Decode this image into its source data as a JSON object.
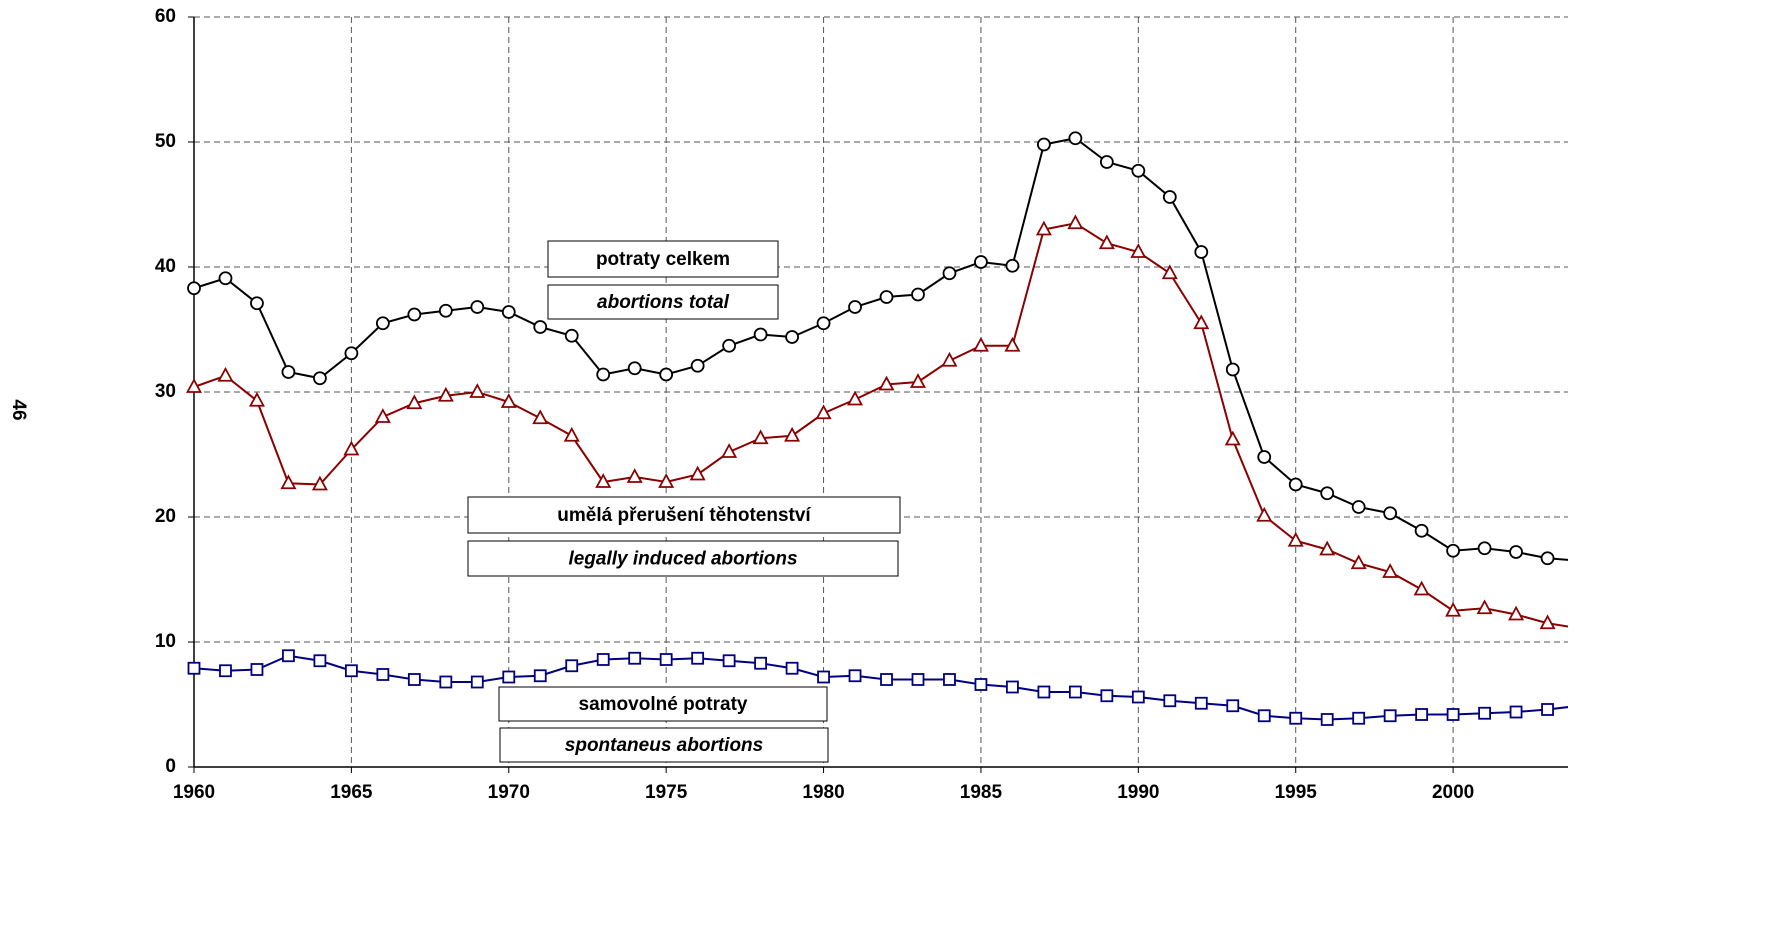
{
  "page_number": "46",
  "chart_data": {
    "type": "line",
    "x": [
      1960,
      1961,
      1962,
      1963,
      1964,
      1965,
      1966,
      1967,
      1968,
      1969,
      1970,
      1971,
      1972,
      1973,
      1974,
      1975,
      1976,
      1977,
      1978,
      1979,
      1980,
      1981,
      1982,
      1983,
      1984,
      1985,
      1986,
      1987,
      1988,
      1989,
      1990,
      1991,
      1992,
      1993,
      1994,
      1995,
      1996,
      1997,
      1998,
      1999,
      2000,
      2001,
      2002,
      2003,
      2004
    ],
    "series": [
      {
        "color": "#000000",
        "marker": "circle",
        "values": [
          38.3,
          39.1,
          37.1,
          31.6,
          31.1,
          33.1,
          35.5,
          36.2,
          36.5,
          36.8,
          36.4,
          35.2,
          34.5,
          31.4,
          31.9,
          31.4,
          32.1,
          33.7,
          34.6,
          34.4,
          35.5,
          36.8,
          37.6,
          37.8,
          39.5,
          40.4,
          40.1,
          49.8,
          50.3,
          48.4,
          47.7,
          45.6,
          41.2,
          31.8,
          24.8,
          22.6,
          21.9,
          20.8,
          20.3,
          18.9,
          17.3,
          17.5,
          17.2,
          16.7,
          16.5
        ]
      },
      {
        "color": "#8b0000",
        "marker": "triangle",
        "values": [
          30.4,
          31.3,
          29.3,
          22.7,
          22.6,
          25.4,
          28.0,
          29.1,
          29.7,
          30.0,
          29.2,
          27.9,
          26.5,
          22.8,
          23.2,
          22.8,
          23.4,
          25.2,
          26.3,
          26.5,
          28.3,
          29.4,
          30.6,
          30.8,
          32.5,
          33.7,
          33.7,
          43.0,
          43.5,
          41.9,
          41.2,
          39.5,
          35.5,
          26.2,
          20.1,
          18.1,
          17.4,
          16.3,
          15.6,
          14.2,
          12.5,
          12.7,
          12.2,
          11.5,
          11.1
        ]
      },
      {
        "color": "#000080",
        "marker": "square",
        "values": [
          7.9,
          7.7,
          7.8,
          8.9,
          8.5,
          7.7,
          7.4,
          7.0,
          6.8,
          6.8,
          7.2,
          7.3,
          8.1,
          8.6,
          8.7,
          8.6,
          8.7,
          8.5,
          8.3,
          7.9,
          7.2,
          7.3,
          7.0,
          7.0,
          7.0,
          6.6,
          6.4,
          6.0,
          6.0,
          5.7,
          5.6,
          5.3,
          5.1,
          4.9,
          4.1,
          3.9,
          3.8,
          3.9,
          4.1,
          4.2,
          4.2,
          4.3,
          4.4,
          4.6,
          4.9
        ]
      }
    ],
    "annotations": [
      "potraty celkem",
      "abortions total",
      "umělá přerušení těhotenství",
      "legally induced abortions",
      "samovolné potraty",
      "spontaneus abortions"
    ],
    "xlim": [
      1960,
      2003.65
    ],
    "xticks": [
      1960,
      1965,
      1970,
      1975,
      1980,
      1985,
      1990,
      1995,
      2000
    ],
    "ylim": [
      0,
      60
    ],
    "yticks": [
      0,
      10,
      20,
      30,
      40,
      50,
      60
    ],
    "grid": true
  }
}
